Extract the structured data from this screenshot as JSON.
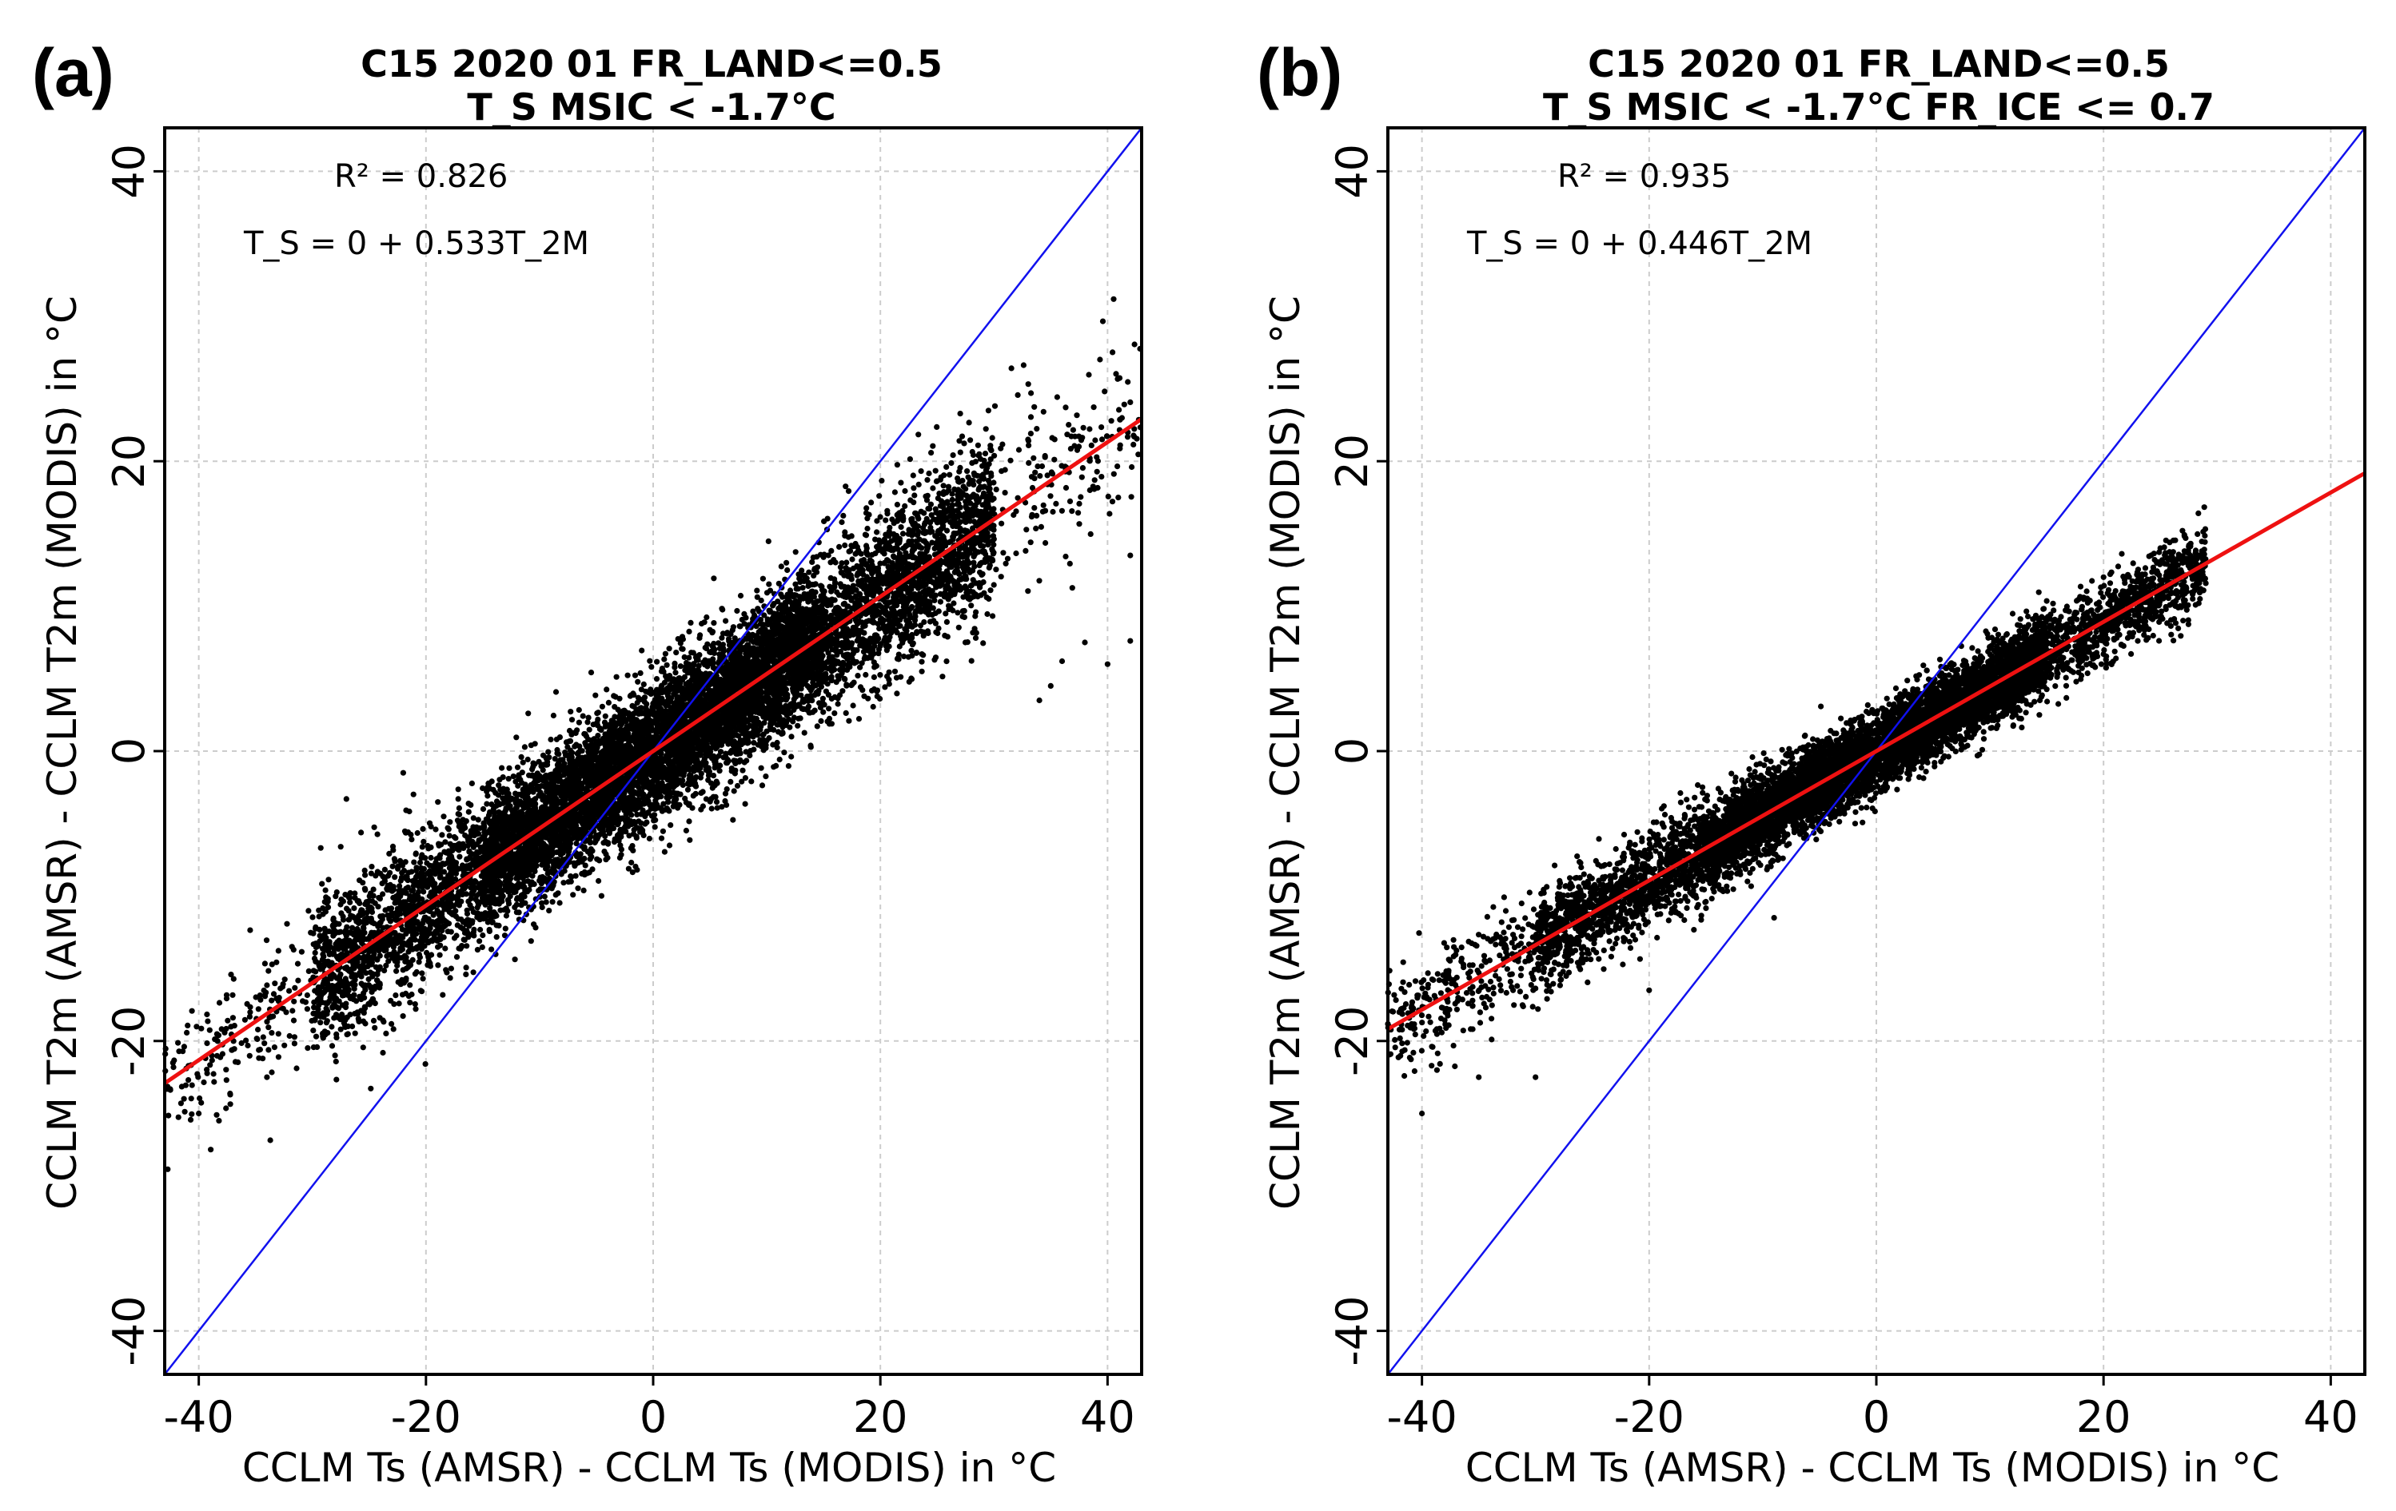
{
  "chart_data": [
    {
      "type": "scatter",
      "panel_label": "(a)",
      "title_line1": "C15 2020 01  FR_LAND<=0.5",
      "title_line2": "T_S MSIC < -1.7°C",
      "xlabel": "CCLM Ts (AMSR) - CCLM Ts (MODIS) in °C",
      "ylabel": "CCLM T2m (AMSR) - CCLM T2m (MODIS) in °C",
      "xlim": [
        -43,
        43
      ],
      "ylim": [
        -43,
        43
      ],
      "xticks": [
        -40,
        -20,
        0,
        20,
        40
      ],
      "yticks": [
        -40,
        -20,
        0,
        20,
        40
      ],
      "xtick_labels": [
        "-40",
        "-20",
        "0",
        "20",
        "40"
      ],
      "ytick_labels": [
        "-40",
        "-20",
        "0",
        "20",
        "40"
      ],
      "grid": true,
      "r2_text": "R² = 0.826",
      "equation_text": "T_S = 0 + 0.533T_2M",
      "regression": {
        "intercept": 0,
        "slope": 0.533,
        "color": "#ee1111"
      },
      "identity_line": {
        "slope": 1,
        "color": "#1111ee"
      },
      "point_color": "#000000",
      "cloud": {
        "x_range": [
          -43,
          43
        ],
        "segments": [
          {
            "x": [
              -43,
              -30
            ],
            "count": 180,
            "spread": 2.2
          },
          {
            "x": [
              -30,
              -15
            ],
            "count": 1400,
            "spread": 2.6
          },
          {
            "x": [
              -15,
              0
            ],
            "count": 3200,
            "spread": 2.3
          },
          {
            "x": [
              0,
              15
            ],
            "count": 3600,
            "spread": 2.4
          },
          {
            "x": [
              15,
              30
            ],
            "count": 1800,
            "spread": 2.8
          },
          {
            "x": [
              30,
              43
            ],
            "count": 170,
            "spread": 3.4
          }
        ],
        "outliers": [
          {
            "x": 38,
            "y": 7.5
          },
          {
            "x": 40,
            "y": 6
          },
          {
            "x": 42,
            "y": 7.6
          },
          {
            "x": 36,
            "y": 6.2
          },
          {
            "x": 35,
            "y": 4.5
          },
          {
            "x": 34,
            "y": 3.5
          },
          {
            "x": 33,
            "y": 21.5
          },
          {
            "x": 42,
            "y": 13.5
          },
          {
            "x": -11,
            "y": 2.6
          },
          {
            "x": -22,
            "y": -1.5
          },
          {
            "x": -27,
            "y": -3.3
          },
          {
            "x": -40,
            "y": -25
          },
          {
            "x": -28,
            "y": -21
          },
          {
            "x": -34,
            "y": -22.5
          },
          {
            "x": -27.5,
            "y": -6.6
          }
        ]
      }
    },
    {
      "type": "scatter",
      "panel_label": "(b)",
      "title_line1": "C15 2020 01  FR_LAND<=0.5",
      "title_line2": "T_S MSIC < -1.7°C  FR_ICE <= 0.7",
      "xlabel": "CCLM Ts (AMSR) - CCLM Ts (MODIS) in °C",
      "ylabel": "CCLM T2m (AMSR) - CCLM T2m (MODIS) in °C",
      "xlim": [
        -43,
        43
      ],
      "ylim": [
        -43,
        43
      ],
      "xticks": [
        -40,
        -20,
        0,
        20,
        40
      ],
      "yticks": [
        -40,
        -20,
        0,
        20,
        40
      ],
      "xtick_labels": [
        "-40",
        "-20",
        "0",
        "20",
        "40"
      ],
      "ytick_labels": [
        "-40",
        "-20",
        "0",
        "20",
        "40"
      ],
      "grid": true,
      "r2_text": "R² = 0.935",
      "equation_text": "T_S = 0 + 0.446T_2M",
      "regression": {
        "intercept": 0,
        "slope": 0.446,
        "color": "#ee1111"
      },
      "identity_line": {
        "slope": 1,
        "color": "#1111ee"
      },
      "point_color": "#000000",
      "cloud": {
        "x_range": [
          -43,
          29
        ],
        "segments": [
          {
            "x": [
              -43,
              -30
            ],
            "count": 300,
            "spread": 1.8
          },
          {
            "x": [
              -30,
              -15
            ],
            "count": 1300,
            "spread": 1.7
          },
          {
            "x": [
              -15,
              0
            ],
            "count": 3000,
            "spread": 1.4
          },
          {
            "x": [
              0,
              15
            ],
            "count": 3300,
            "spread": 1.3
          },
          {
            "x": [
              15,
              29
            ],
            "count": 900,
            "spread": 1.4
          }
        ],
        "outliers": [
          {
            "x": 25,
            "y": 14
          },
          {
            "x": 24.5,
            "y": 13.2
          },
          {
            "x": 20,
            "y": 12
          },
          {
            "x": 27,
            "y": 9
          },
          {
            "x": -27,
            "y": -11.5
          },
          {
            "x": -40,
            "y": -25
          },
          {
            "x": -35,
            "y": -22.5
          },
          {
            "x": -9,
            "y": -11.5
          },
          {
            "x": -21.7,
            "y": -6.3
          },
          {
            "x": -20,
            "y": -16.5
          },
          {
            "x": -30,
            "y": -22.5
          }
        ]
      }
    }
  ]
}
